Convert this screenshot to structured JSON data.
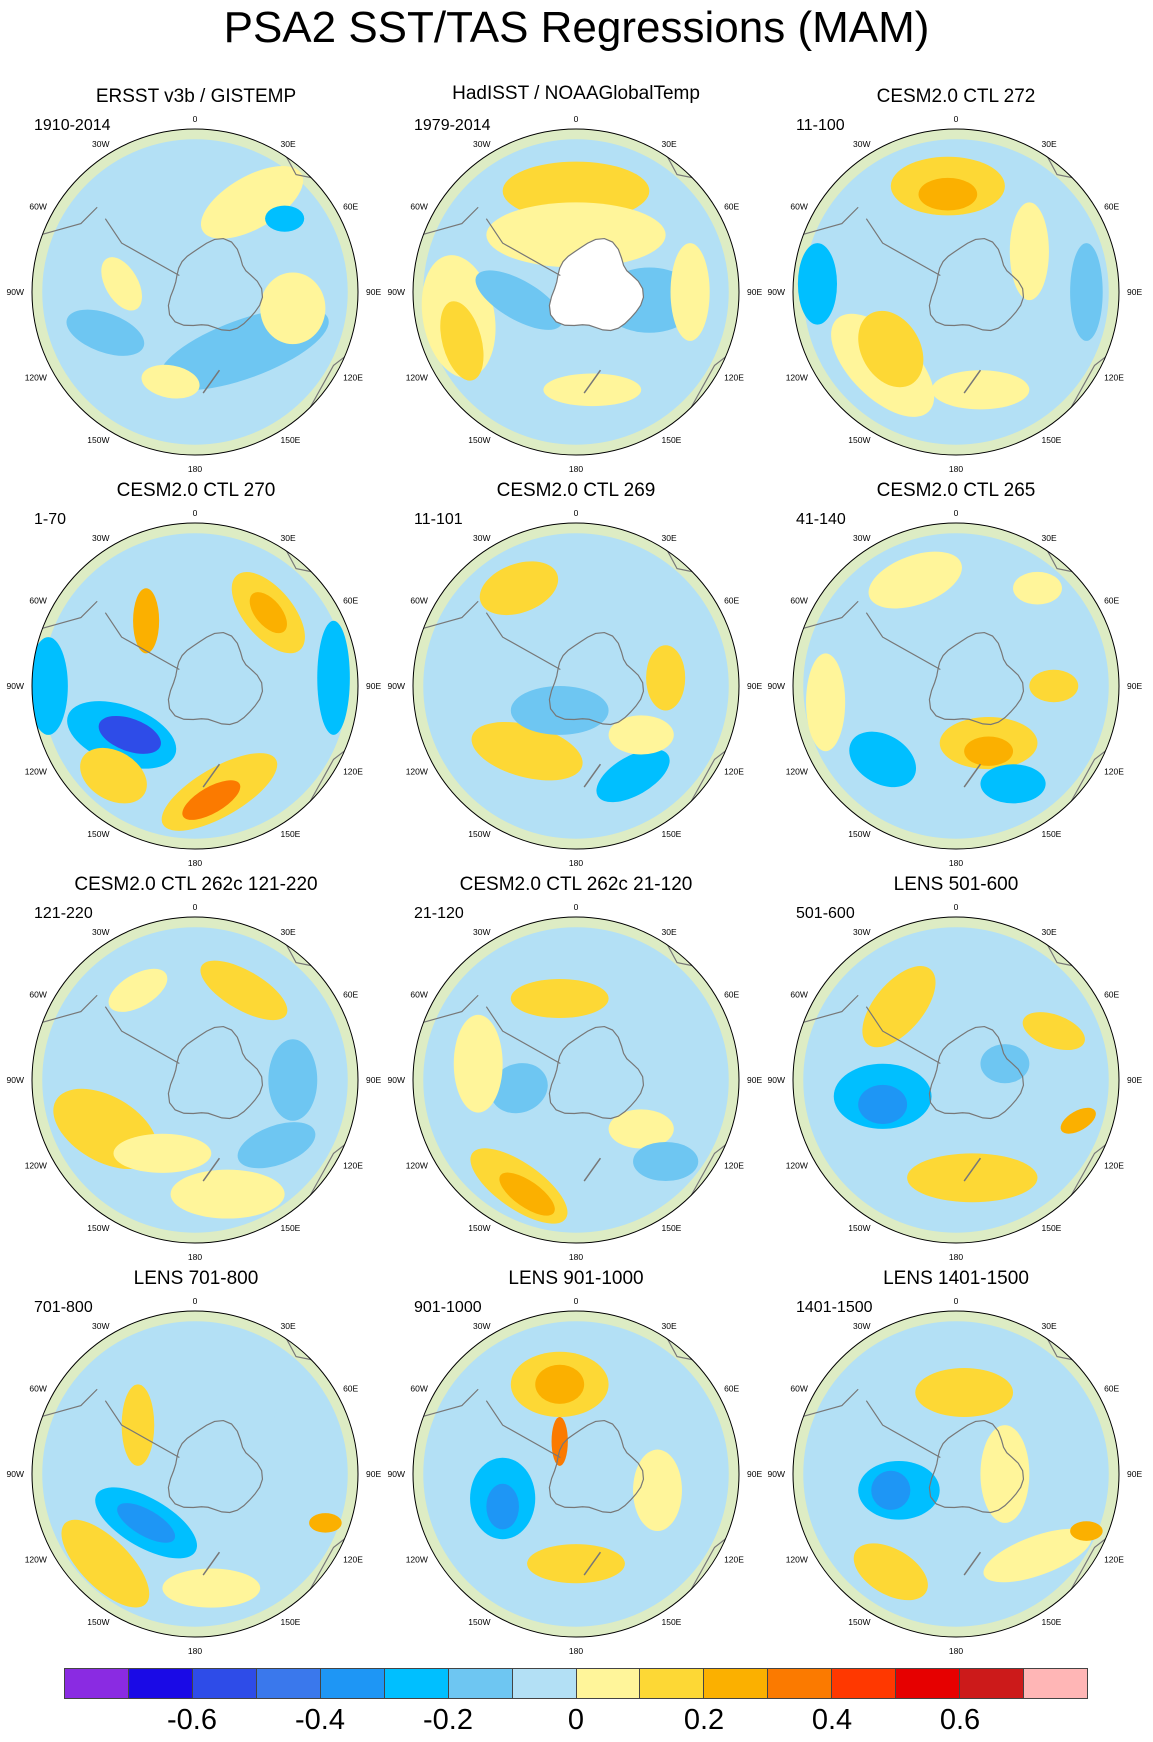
{
  "title": "PSA2 SST/TAS Regressions (MAM)",
  "lon_labels": [
    "0",
    "30E",
    "60E",
    "90E",
    "120E",
    "150E",
    "180",
    "150W",
    "120W",
    "90W",
    "60W",
    "30W"
  ],
  "panels": [
    {
      "title": "ERSST v3b / GISTEMP",
      "period": "1910-2014",
      "pattern": "obs1"
    },
    {
      "title": "HadISST / NOAAGlobalTemp",
      "period": "1979-2014",
      "pattern": "obs2"
    },
    {
      "title": "CESM2.0 CTL 272",
      "period": "11-100",
      "pattern": "ctl272"
    },
    {
      "title": "CESM2.0 CTL 270",
      "period": "1-70",
      "pattern": "ctl270"
    },
    {
      "title": "CESM2.0 CTL 269",
      "period": "11-101",
      "pattern": "ctl269"
    },
    {
      "title": "CESM2.0 CTL 265",
      "period": "41-140",
      "pattern": "ctl265"
    },
    {
      "title": "CESM2.0 CTL 262c 121-220",
      "period": "121-220",
      "pattern": "ctl262a"
    },
    {
      "title": "CESM2.0 CTL 262c 21-120",
      "period": "21-120",
      "pattern": "ctl262b"
    },
    {
      "title": "LENS 501-600",
      "period": "501-600",
      "pattern": "lens501"
    },
    {
      "title": "LENS 701-800",
      "period": "701-800",
      "pattern": "lens701"
    },
    {
      "title": "LENS 901-1000",
      "period": "901-1000",
      "pattern": "lens901"
    },
    {
      "title": "LENS 1401-1500",
      "period": "1401-1500",
      "pattern": "lens1401"
    }
  ],
  "colorbar": {
    "colors": [
      "#8a2be2",
      "#1a0ae6",
      "#2e4ce8",
      "#3a78ec",
      "#1e96f5",
      "#00bfff",
      "#6ec6f2",
      "#b3e0f5",
      "#fff59a",
      "#fdd835",
      "#fbb000",
      "#fb7a00",
      "#ff3800",
      "#e60000",
      "#cc1a1a",
      "#ffb6b6"
    ],
    "labels": [
      "-0.6",
      "-0.4",
      "-0.2",
      "0",
      "0.2",
      "0.4",
      "0.6"
    ]
  }
}
